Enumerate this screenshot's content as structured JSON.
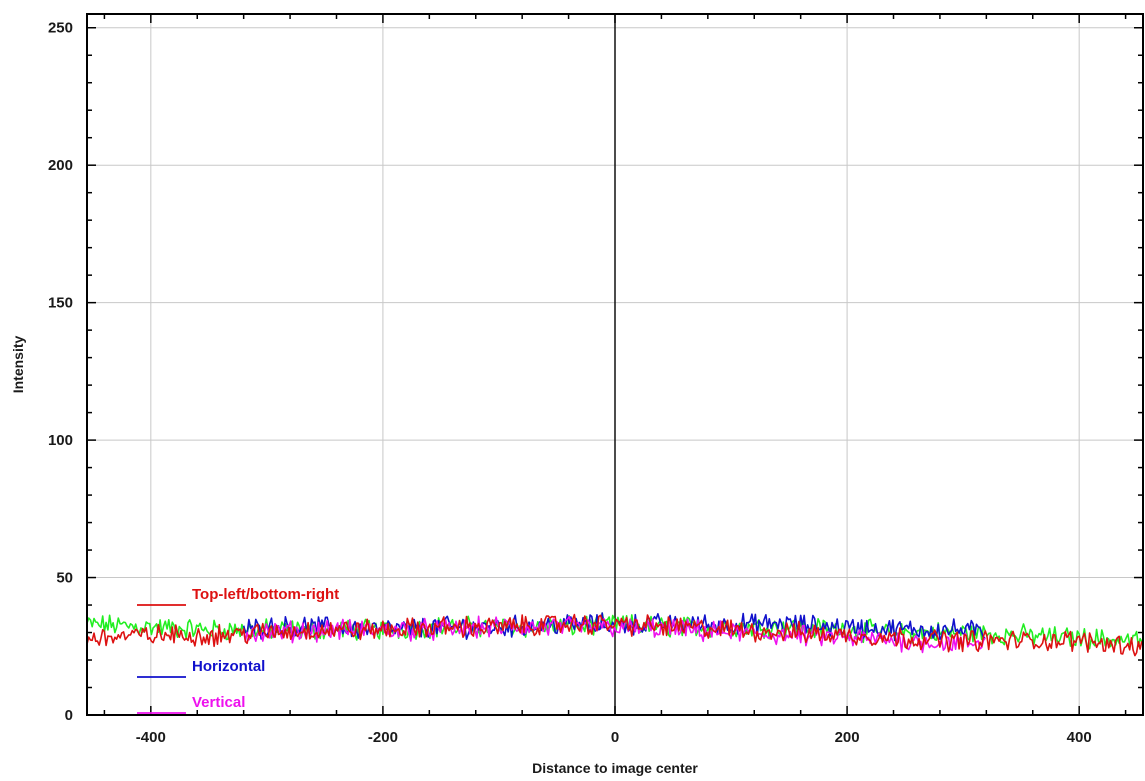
{
  "chart_data": {
    "type": "line",
    "xlabel": "Distance to image center",
    "ylabel": "Intensity",
    "xlim": [
      -455,
      455
    ],
    "ylim": [
      0,
      255
    ],
    "x_ticks": [
      -400,
      -200,
      0,
      200,
      400
    ],
    "y_ticks": [
      0,
      50,
      100,
      150,
      200,
      250
    ],
    "grid": true,
    "legend_position": "bottom-left",
    "series": [
      {
        "name": "Top-left/bottom-right",
        "color": "#dd1111",
        "x": [
          -455,
          -400,
          -350,
          -300,
          -250,
          -200,
          -150,
          -100,
          -50,
          0,
          50,
          100,
          150,
          200,
          250,
          300,
          350,
          400,
          455
        ],
        "values": [
          28,
          29,
          29,
          30,
          31,
          31,
          32,
          32,
          33,
          33,
          32,
          31,
          30,
          29,
          28,
          27,
          27,
          27,
          25
        ]
      },
      {
        "name": "",
        "color": "#22ee22",
        "x": [
          -455,
          -400,
          -350,
          -300,
          -250,
          -200,
          -150,
          -100,
          -50,
          0,
          50,
          100,
          150,
          200,
          250,
          300,
          350,
          400,
          455
        ],
        "values": [
          33,
          32,
          31,
          31,
          31,
          31,
          32,
          32,
          32,
          33,
          32,
          32,
          32,
          31,
          30,
          30,
          29,
          28,
          27
        ]
      },
      {
        "name": "Horizontal",
        "color": "#1111cc",
        "x": [
          -320,
          -300,
          -250,
          -200,
          -150,
          -100,
          -50,
          0,
          50,
          100,
          150,
          200,
          250,
          300,
          320
        ],
        "values": [
          31,
          32,
          32,
          31,
          32,
          32,
          33,
          33,
          33,
          33,
          33,
          32,
          31,
          31,
          30
        ]
      },
      {
        "name": "Vertical",
        "color": "#ee11ee",
        "x": [
          -320,
          -300,
          -250,
          -200,
          -150,
          -100,
          -50,
          0,
          50,
          100,
          150,
          200,
          250,
          300,
          320
        ],
        "values": [
          30,
          30,
          31,
          31,
          31,
          32,
          32,
          32,
          31,
          30,
          29,
          28,
          27,
          26,
          26
        ]
      }
    ]
  }
}
